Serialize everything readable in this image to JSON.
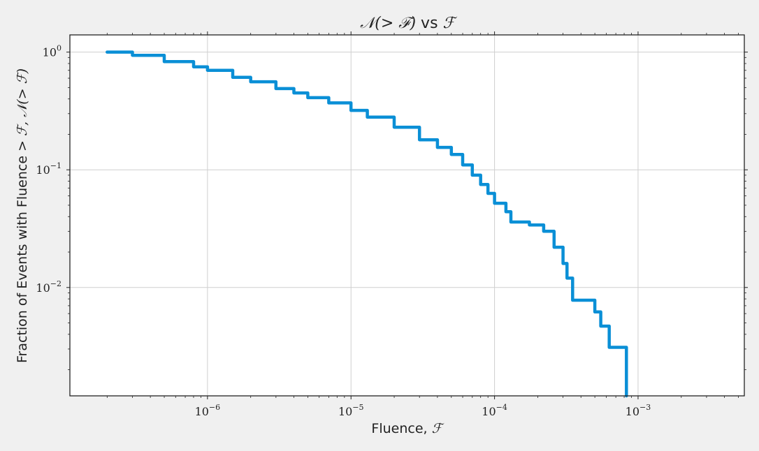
{
  "chart_data": {
    "type": "line",
    "title": {
      "math1": "𝒩(> ℱ)",
      "text": " vs ",
      "math2": "ℱ"
    },
    "xlabel": {
      "text": "Fluence, ",
      "math": "ℱ"
    },
    "ylabel": {
      "text": "Fraction of Events with Fluence > ",
      "math": "ℱ, 𝒩(> ℱ)"
    },
    "xscale": "log",
    "yscale": "log",
    "xlim": [
      1.1e-07,
      0.0055
    ],
    "ylim": [
      0.0012,
      1.4
    ],
    "grid": true,
    "line_color": "#0a8fd6",
    "x_ticks": [
      {
        "base": "10",
        "exp": "−6",
        "value": 1e-06
      },
      {
        "base": "10",
        "exp": "−5",
        "value": 1e-05
      },
      {
        "base": "10",
        "exp": "−4",
        "value": 0.0001
      },
      {
        "base": "10",
        "exp": "−3",
        "value": 0.001
      }
    ],
    "y_ticks": [
      {
        "base": "10",
        "exp": "0",
        "value": 1
      },
      {
        "base": "10",
        "exp": "−1",
        "value": 0.1
      },
      {
        "base": "10",
        "exp": "−2",
        "value": 0.01
      }
    ],
    "series": [
      {
        "x": [
          2e-07,
          3e-07,
          5e-07,
          8e-07,
          1e-06,
          1.5e-06,
          2e-06,
          3e-06,
          4e-06,
          5e-06,
          7e-06,
          1e-05,
          1.3e-05,
          2e-05,
          3e-05,
          4e-05,
          5e-05,
          6e-05,
          7e-05,
          8e-05,
          9e-05,
          0.0001,
          0.00012,
          0.00013,
          0.000175,
          0.00022,
          0.00026,
          0.0003,
          0.00032,
          0.00035,
          0.0005,
          0.00055,
          0.00063,
          0.00083
        ],
        "y": [
          1.0,
          0.94,
          0.83,
          0.75,
          0.7,
          0.61,
          0.56,
          0.49,
          0.45,
          0.41,
          0.37,
          0.32,
          0.28,
          0.23,
          0.18,
          0.155,
          0.135,
          0.11,
          0.09,
          0.075,
          0.063,
          0.052,
          0.044,
          0.036,
          0.034,
          0.03,
          0.022,
          0.016,
          0.012,
          0.0078,
          0.0062,
          0.0047,
          0.0031,
          0.0016
        ]
      }
    ]
  }
}
